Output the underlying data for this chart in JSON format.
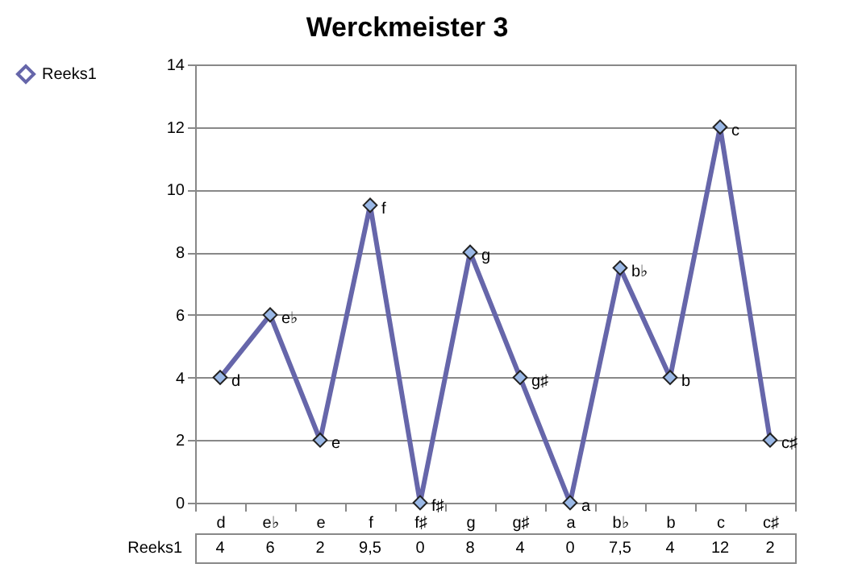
{
  "chart_data": {
    "type": "line",
    "title": "Werckmeister 3",
    "categories": [
      "d",
      "e♭",
      "e",
      "f",
      "f♯",
      "g",
      "g♯",
      "a",
      "b♭",
      "b",
      "c",
      "c♯"
    ],
    "series": [
      {
        "name": "Reeks1",
        "color": "#6666aa",
        "values": [
          4,
          6,
          2,
          9.5,
          0,
          8,
          4,
          0,
          7.5,
          4,
          12,
          2
        ],
        "value_labels": [
          "4",
          "6",
          "2",
          "9,5",
          "0",
          "8",
          "4",
          "0",
          "7,5",
          "4",
          "12",
          "2"
        ]
      }
    ],
    "ylim": [
      0,
      14
    ],
    "yticks": [
      0,
      2,
      4,
      6,
      8,
      10,
      12,
      14
    ],
    "grid": "y",
    "legend": "left",
    "marker": "diamond",
    "annotations": [
      {
        "text": "d",
        "x": "d",
        "y": 4
      },
      {
        "text": "e♭",
        "x": "e♭",
        "y": 6
      },
      {
        "text": "e",
        "x": "e",
        "y": 2
      },
      {
        "text": "f",
        "x": "f",
        "y": 9.5
      },
      {
        "text": "f♯",
        "x": "f♯",
        "y": 0
      },
      {
        "text": "g",
        "x": "g",
        "y": 8
      },
      {
        "text": "g♯",
        "x": "g♯",
        "y": 4
      },
      {
        "text": "a",
        "x": "a",
        "y": 0
      },
      {
        "text": "b♭",
        "x": "b♭",
        "y": 7.5
      },
      {
        "text": "b",
        "x": "b",
        "y": 4
      },
      {
        "text": "c",
        "x": "c",
        "y": 12
      },
      {
        "text": "c♯",
        "x": "c♯",
        "y": 2
      }
    ]
  }
}
